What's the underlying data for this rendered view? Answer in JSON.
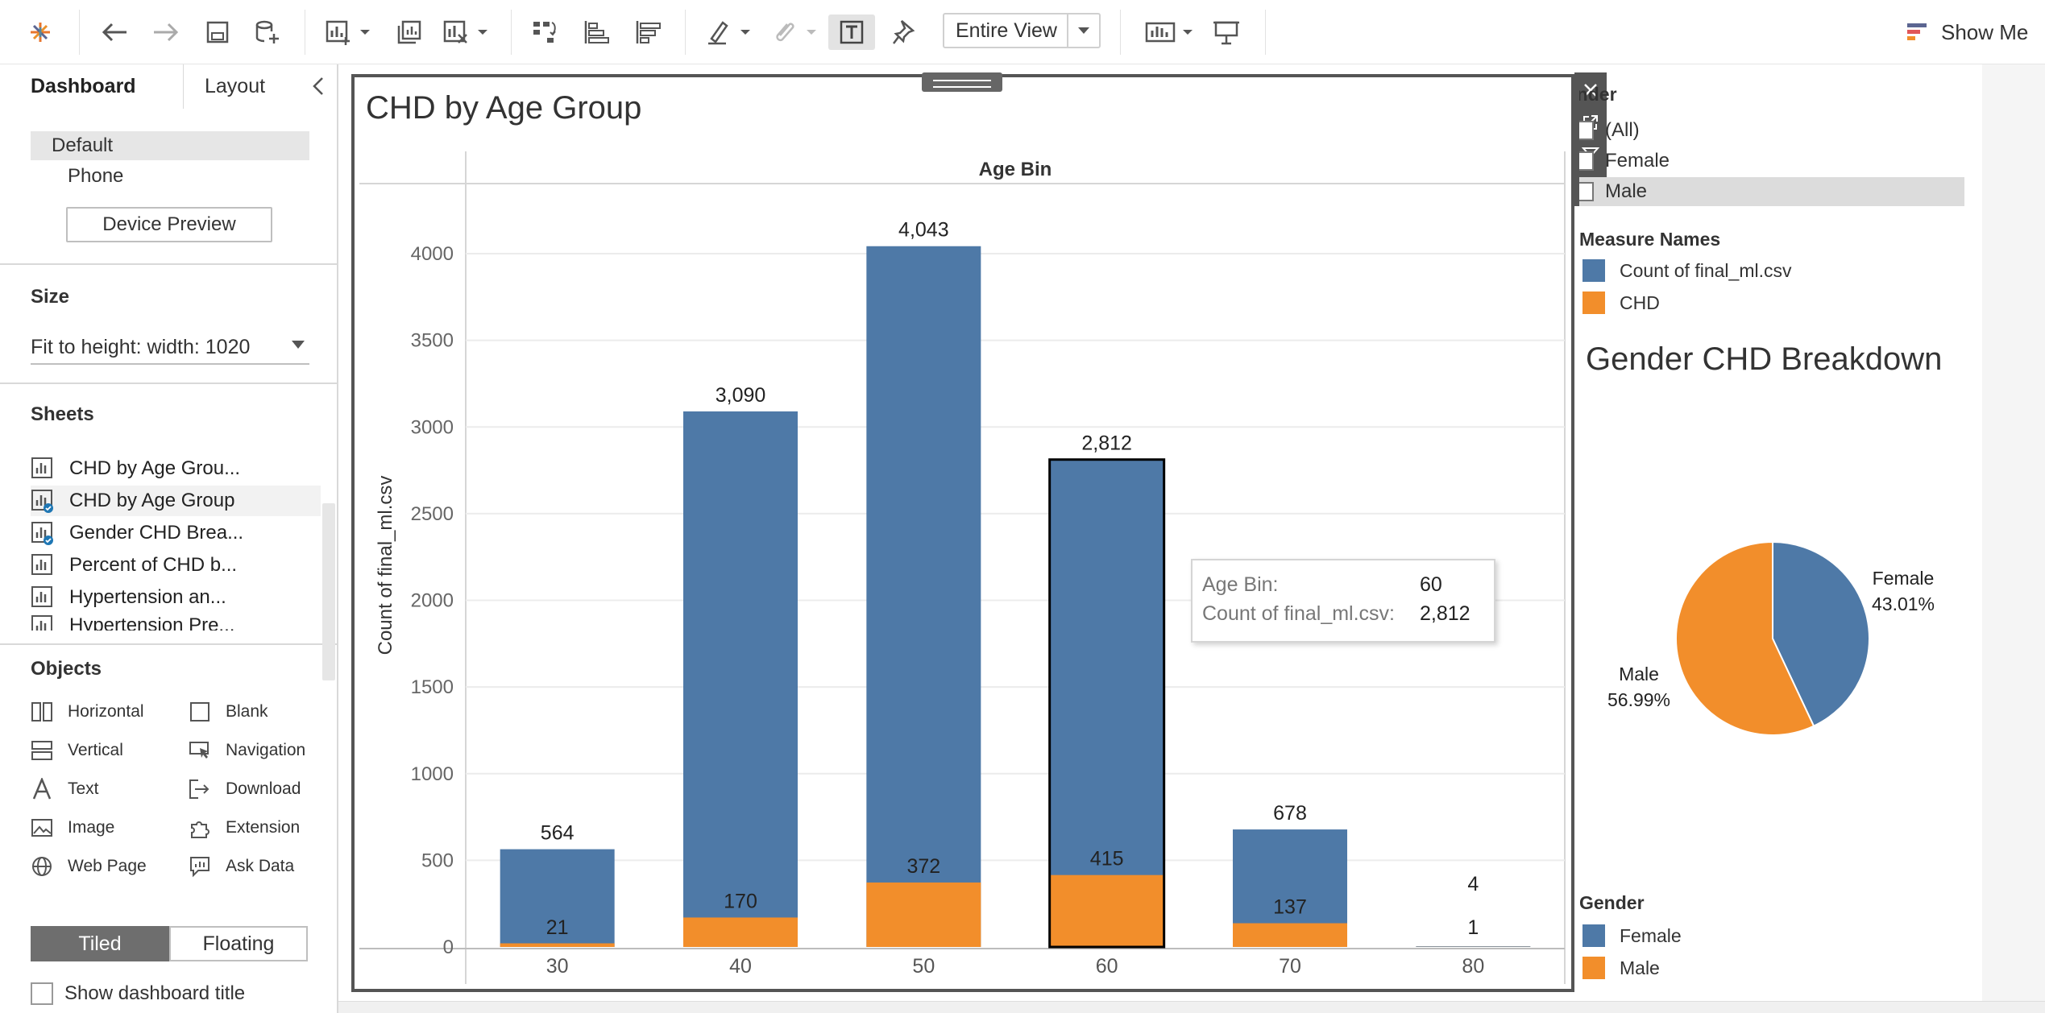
{
  "toolbar": {
    "view_select": "Entire View",
    "show_me": "Show Me"
  },
  "left_panel": {
    "tabs": [
      "Dashboard",
      "Layout"
    ],
    "device": {
      "default": "Default",
      "phone": "Phone",
      "preview_button": "Device Preview"
    },
    "size": {
      "title": "Size",
      "value": "Fit to height: width: 1020"
    },
    "sheets": {
      "title": "Sheets",
      "items": [
        "CHD by Age Grou...",
        "CHD by Age Group",
        "Gender CHD Brea...",
        "Percent of CHD b...",
        "Hypertension  an...",
        "Hypertension Pre..."
      ]
    },
    "objects": {
      "title": "Objects",
      "items": [
        "Horizontal",
        "Blank",
        "Vertical",
        "Navigation",
        "Text",
        "Download",
        "Image",
        "Extension",
        "Web Page",
        "Ask Data"
      ]
    },
    "layout_mode": [
      "Tiled",
      "Floating"
    ],
    "show_title": "Show dashboard title"
  },
  "chart": {
    "title": "CHD by Age Group",
    "header": "Age Bin",
    "ylabel": "Count of final_ml.csv"
  },
  "chart_data": {
    "type": "bar",
    "title": "CHD by Age Group",
    "xlabel": "Age Bin",
    "ylabel": "Count of final_ml.csv",
    "categories": [
      "30",
      "40",
      "50",
      "60",
      "70",
      "80"
    ],
    "series": [
      {
        "name": "Count of final_ml.csv",
        "values": [
          564,
          3090,
          4043,
          2812,
          678,
          4
        ],
        "labels": [
          "564",
          "3,090",
          "4,043",
          "2,812",
          "678",
          "4"
        ],
        "color": "#4e79a7"
      },
      {
        "name": "CHD",
        "values": [
          21,
          170,
          372,
          415,
          137,
          1
        ],
        "labels": [
          "21",
          "170",
          "372",
          "415",
          "137",
          "1"
        ],
        "color": "#f28e2b"
      }
    ],
    "ylim": [
      0,
      4250
    ],
    "yticks": [
      0,
      500,
      1000,
      1500,
      2000,
      2500,
      3000,
      3500,
      4000
    ],
    "selected_category": "60",
    "grid": true
  },
  "tooltip": {
    "row1_label": "Age Bin:",
    "row1_value": "60",
    "row2_label": "Count of final_ml.csv:",
    "row2_value": "2,812"
  },
  "filter": {
    "title": "Gender",
    "items": [
      "(All)",
      "Female",
      "Male"
    ],
    "selected": "Male"
  },
  "legend_measure": {
    "title": "Measure Names",
    "items": [
      {
        "label": "Count of final_ml.csv",
        "color": "#4e79a7"
      },
      {
        "label": "CHD",
        "color": "#f28e2b"
      }
    ]
  },
  "pie": {
    "title": "Gender CHD Breakdown",
    "chart_data": {
      "type": "pie",
      "slices": [
        {
          "name": "Female",
          "value": 43.01,
          "label": "43.01%",
          "color": "#4e79a7"
        },
        {
          "name": "Male",
          "value": 56.99,
          "label": "56.99%",
          "color": "#f28e2b"
        }
      ]
    }
  },
  "legend_gender": {
    "title": "Gender",
    "items": [
      {
        "label": "Female",
        "color": "#4e79a7"
      },
      {
        "label": "Male",
        "color": "#f28e2b"
      }
    ]
  }
}
